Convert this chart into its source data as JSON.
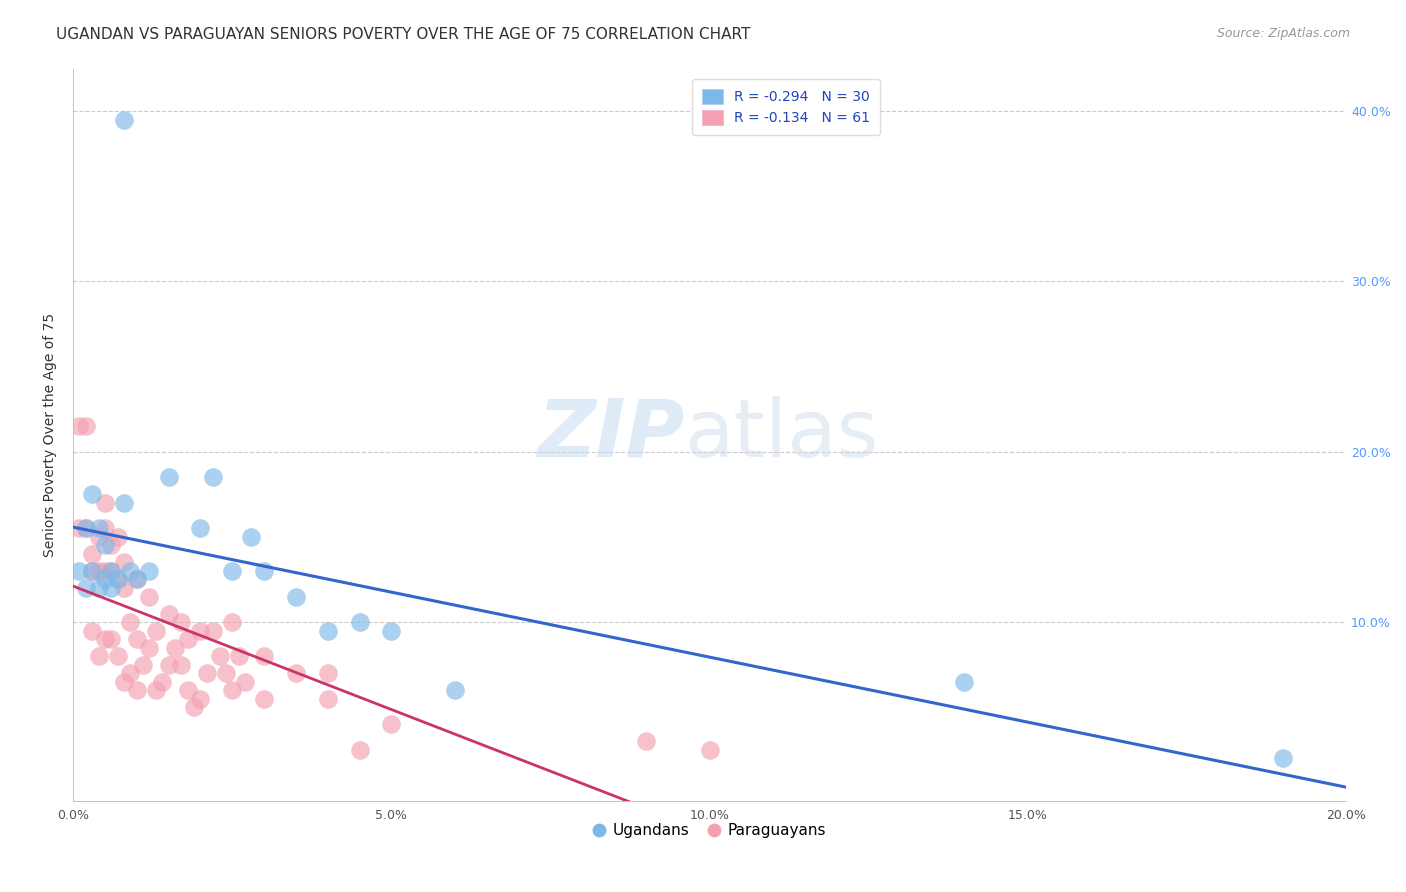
{
  "title": "UGANDAN VS PARAGUAYAN SENIORS POVERTY OVER THE AGE OF 75 CORRELATION CHART",
  "source": "Source: ZipAtlas.com",
  "ylabel": "Seniors Poverty Over the Age of 75",
  "xlim": [
    0.0,
    0.2
  ],
  "ylim": [
    -0.005,
    0.425
  ],
  "xtick_labels": [
    "0.0%",
    "5.0%",
    "10.0%",
    "15.0%",
    "20.0%"
  ],
  "xtick_values": [
    0.0,
    0.05,
    0.1,
    0.15,
    0.2
  ],
  "ytick_labels_right": [
    "10.0%",
    "20.0%",
    "30.0%",
    "40.0%"
  ],
  "ytick_values_right": [
    0.1,
    0.2,
    0.3,
    0.4
  ],
  "ugandan_color": "#7eb8e8",
  "paraguayan_color": "#f4a0b0",
  "ugandan_line_color": "#3366cc",
  "paraguayan_line_color": "#cc3366",
  "ugandan_R": -0.294,
  "ugandan_N": 30,
  "paraguayan_R": -0.134,
  "paraguayan_N": 61,
  "legend_label_color": "#2244bb",
  "ugandan_x": [
    0.008,
    0.001,
    0.002,
    0.002,
    0.003,
    0.003,
    0.004,
    0.004,
    0.005,
    0.005,
    0.006,
    0.006,
    0.007,
    0.008,
    0.009,
    0.01,
    0.012,
    0.015,
    0.02,
    0.022,
    0.025,
    0.028,
    0.03,
    0.035,
    0.04,
    0.045,
    0.05,
    0.06,
    0.14,
    0.19
  ],
  "ugandan_y": [
    0.395,
    0.13,
    0.155,
    0.12,
    0.175,
    0.13,
    0.155,
    0.12,
    0.145,
    0.125,
    0.13,
    0.12,
    0.125,
    0.17,
    0.13,
    0.125,
    0.13,
    0.185,
    0.155,
    0.185,
    0.13,
    0.15,
    0.13,
    0.115,
    0.095,
    0.1,
    0.095,
    0.06,
    0.065,
    0.02
  ],
  "paraguayan_x": [
    0.001,
    0.001,
    0.002,
    0.002,
    0.003,
    0.003,
    0.003,
    0.004,
    0.004,
    0.004,
    0.005,
    0.005,
    0.005,
    0.005,
    0.006,
    0.006,
    0.006,
    0.007,
    0.007,
    0.007,
    0.008,
    0.008,
    0.008,
    0.009,
    0.009,
    0.01,
    0.01,
    0.01,
    0.011,
    0.012,
    0.012,
    0.013,
    0.013,
    0.014,
    0.015,
    0.015,
    0.016,
    0.017,
    0.017,
    0.018,
    0.018,
    0.019,
    0.02,
    0.02,
    0.021,
    0.022,
    0.023,
    0.024,
    0.025,
    0.025,
    0.026,
    0.027,
    0.03,
    0.03,
    0.035,
    0.04,
    0.04,
    0.045,
    0.05,
    0.09,
    0.1
  ],
  "paraguayan_y": [
    0.215,
    0.155,
    0.215,
    0.155,
    0.14,
    0.13,
    0.095,
    0.15,
    0.13,
    0.08,
    0.17,
    0.155,
    0.13,
    0.09,
    0.145,
    0.13,
    0.09,
    0.15,
    0.125,
    0.08,
    0.135,
    0.12,
    0.065,
    0.1,
    0.07,
    0.125,
    0.09,
    0.06,
    0.075,
    0.115,
    0.085,
    0.095,
    0.06,
    0.065,
    0.105,
    0.075,
    0.085,
    0.1,
    0.075,
    0.09,
    0.06,
    0.05,
    0.095,
    0.055,
    0.07,
    0.095,
    0.08,
    0.07,
    0.1,
    0.06,
    0.08,
    0.065,
    0.055,
    0.08,
    0.07,
    0.055,
    0.07,
    0.025,
    0.04,
    0.03,
    0.025
  ],
  "watermark_zip": "ZIP",
  "watermark_atlas": "atlas",
  "grid_color": "#cccccc",
  "background_color": "#ffffff",
  "title_fontsize": 11,
  "axis_label_fontsize": 10,
  "tick_fontsize": 9,
  "legend_fontsize": 10,
  "source_fontsize": 9
}
